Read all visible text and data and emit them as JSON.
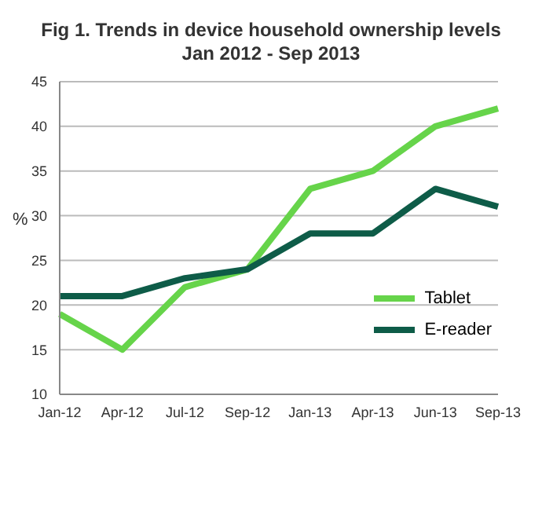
{
  "chart_data": {
    "type": "line",
    "title": "Fig 1. Trends in device household ownership levels",
    "subtitle": "Jan 2012 - Sep 2013",
    "ylabel": "%",
    "categories": [
      "Jan-12",
      "Apr-12",
      "Jul-12",
      "Sep-12",
      "Jan-13",
      "Apr-13",
      "Jun-13",
      "Sep-13"
    ],
    "series": [
      {
        "name": "Tablet",
        "color": "#66d44a",
        "values": [
          19,
          15,
          22,
          24,
          33,
          35,
          40,
          42
        ]
      },
      {
        "name": "E-reader",
        "color": "#0e5c48",
        "values": [
          21,
          21,
          23,
          24,
          28,
          28,
          33,
          31
        ]
      }
    ],
    "ylim": [
      10,
      45
    ],
    "yticks": [
      10,
      15,
      20,
      25,
      30,
      35,
      40,
      45
    ],
    "grid": "y",
    "legend": "right",
    "marker": "none",
    "line_style": "solid"
  }
}
